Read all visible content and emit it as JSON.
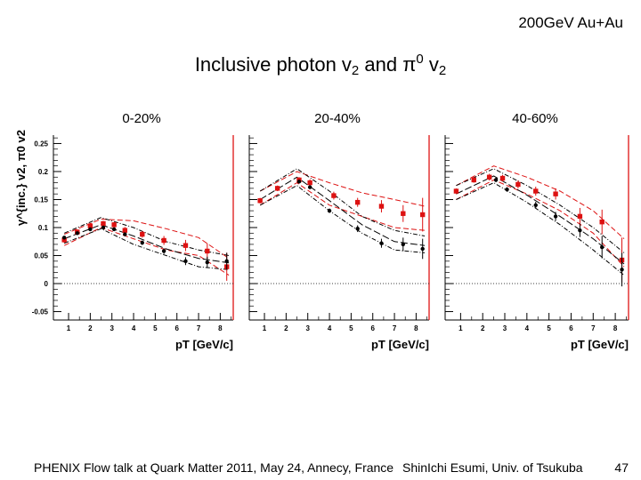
{
  "slide": {
    "header_tag": "200GeV Au+Au",
    "title_main": "Inclusive photon v",
    "title_sub": "2",
    "title_and": " and π",
    "title_sup": "0",
    "title_v": " v",
    "title_sub2": "2",
    "footer_left": "PHENIX Flow talk at Quark Matter 2011, May 24, Annecy, France",
    "footer_right": "ShinIchi Esumi, Univ. of Tsukuba",
    "page_number": "47"
  },
  "colors": {
    "photon": "#dd1111",
    "pi0": "#000000",
    "frame_red": "#dd0000"
  },
  "chart_data": {
    "type": "scatter",
    "ylabel": "γ^{inc.} v2, π0 v2",
    "xlabel": "pT [GeV/c]",
    "xlim": [
      0.3,
      8.6
    ],
    "ylim": [
      -0.065,
      0.265
    ],
    "yticks": [
      -0.05,
      0,
      0.05,
      0.1,
      0.15,
      0.2,
      0.25
    ],
    "ytick_labels": [
      "-0.05",
      "0",
      "0.05",
      "0.1",
      "0.15",
      "0.2",
      "0.25"
    ],
    "xticks": [
      1,
      2,
      3,
      4,
      5,
      6,
      7,
      8
    ],
    "xtick_labels": [
      "1",
      "2",
      "3",
      "4",
      "5",
      "6",
      "7",
      "8"
    ],
    "panels": [
      {
        "label": "0-20%",
        "series": [
          {
            "name": "inclusive photon v2",
            "marker": "square",
            "color": "#dd1111",
            "x": [
              0.8,
              1.4,
              2.0,
              2.6,
              3.1,
              3.6,
              4.4,
              5.4,
              6.4,
              7.4,
              8.3
            ],
            "y": [
              0.078,
              0.092,
              0.103,
              0.107,
              0.105,
              0.095,
              0.088,
              0.077,
              0.068,
              0.058,
              0.03
            ],
            "err": [
              0.005,
              0.005,
              0.005,
              0.005,
              0.005,
              0.006,
              0.006,
              0.008,
              0.01,
              0.014,
              0.025
            ]
          },
          {
            "name": "pi0 v2",
            "marker": "dot",
            "color": "#000000",
            "x": [
              0.8,
              1.4,
              2.0,
              2.6,
              3.1,
              3.6,
              4.4,
              5.4,
              6.4,
              7.4,
              8.3
            ],
            "y": [
              0.082,
              0.09,
              0.097,
              0.1,
              0.097,
              0.088,
              0.073,
              0.058,
              0.04,
              0.038,
              0.04
            ],
            "err": [
              0.002,
              0.002,
              0.002,
              0.002,
              0.002,
              0.003,
              0.004,
              0.005,
              0.007,
              0.01,
              0.015
            ]
          }
        ],
        "bands": [
          {
            "name": "photon upper",
            "color": "#dd1111",
            "dash": "6,3",
            "x": [
              0.8,
              2.5,
              4.0,
              5.5,
              7.0,
              8.4
            ],
            "y": [
              0.088,
              0.115,
              0.112,
              0.098,
              0.082,
              0.045
            ]
          },
          {
            "name": "photon lower",
            "color": "#dd1111",
            "dash": "6,3",
            "x": [
              0.8,
              2.5,
              4.0,
              5.5,
              7.0,
              8.4
            ],
            "y": [
              0.068,
              0.1,
              0.08,
              0.06,
              0.05,
              0.015
            ]
          },
          {
            "name": "decay upper",
            "color": "#000000",
            "dash": "5,2,1,2",
            "x": [
              0.8,
              2.5,
              4.0,
              5.5,
              7.0,
              8.4
            ],
            "y": [
              0.09,
              0.118,
              0.1,
              0.075,
              0.06,
              0.05
            ]
          },
          {
            "name": "decay lower",
            "color": "#000000",
            "dash": "5,2,1,2",
            "x": [
              0.8,
              2.5,
              4.0,
              5.5,
              7.0,
              8.4
            ],
            "y": [
              0.072,
              0.098,
              0.07,
              0.05,
              0.03,
              0.025
            ]
          },
          {
            "name": "decay central",
            "color": "#000000",
            "dash": "8,3",
            "x": [
              0.8,
              2.5,
              4.0,
              5.5,
              7.0,
              8.4
            ],
            "y": [
              0.08,
              0.105,
              0.085,
              0.062,
              0.045,
              0.037
            ]
          }
        ]
      },
      {
        "label": "20-40%",
        "series": [
          {
            "name": "inclusive photon v2",
            "marker": "square",
            "color": "#dd1111",
            "x": [
              0.8,
              1.6,
              2.6,
              3.1,
              4.2,
              5.3,
              6.4,
              7.4,
              8.3
            ],
            "y": [
              0.148,
              0.17,
              0.185,
              0.18,
              0.157,
              0.145,
              0.138,
              0.125,
              0.123
            ],
            "err": [
              0.005,
              0.005,
              0.005,
              0.006,
              0.007,
              0.008,
              0.011,
              0.015,
              0.03
            ]
          },
          {
            "name": "pi0 v2",
            "marker": "dot",
            "color": "#000000",
            "x": [
              2.6,
              3.1,
              4.0,
              5.3,
              6.4,
              7.4,
              8.3
            ],
            "y": [
              0.182,
              0.172,
              0.13,
              0.098,
              0.072,
              0.07,
              0.062
            ],
            "err": [
              0.003,
              0.003,
              0.004,
              0.006,
              0.008,
              0.012,
              0.018
            ]
          }
        ],
        "bands": [
          {
            "name": "photon upper",
            "color": "#dd1111",
            "dash": "6,3",
            "x": [
              0.8,
              2.5,
              4.0,
              5.5,
              7.0,
              8.4
            ],
            "y": [
              0.165,
              0.2,
              0.18,
              0.162,
              0.15,
              0.138
            ]
          },
          {
            "name": "photon lower",
            "color": "#dd1111",
            "dash": "6,3",
            "x": [
              0.8,
              2.5,
              4.0,
              5.5,
              7.0,
              8.4
            ],
            "y": [
              0.14,
              0.18,
              0.14,
              0.12,
              0.1,
              0.095
            ]
          },
          {
            "name": "decay upper",
            "color": "#000000",
            "dash": "5,2,1,2",
            "x": [
              0.8,
              2.5,
              4.0,
              5.5,
              7.0,
              8.4
            ],
            "y": [
              0.165,
              0.205,
              0.165,
              0.12,
              0.095,
              0.085
            ]
          },
          {
            "name": "decay lower",
            "color": "#000000",
            "dash": "5,2,1,2",
            "x": [
              0.8,
              2.5,
              4.0,
              5.5,
              7.0,
              8.4
            ],
            "y": [
              0.14,
              0.175,
              0.13,
              0.09,
              0.06,
              0.055
            ]
          },
          {
            "name": "decay central",
            "color": "#000000",
            "dash": "8,3",
            "x": [
              0.8,
              2.5,
              4.0,
              5.5,
              7.0,
              8.4
            ],
            "y": [
              0.15,
              0.19,
              0.148,
              0.105,
              0.075,
              0.068
            ]
          }
        ]
      },
      {
        "label": "40-60%",
        "series": [
          {
            "name": "inclusive photon v2",
            "marker": "square",
            "color": "#dd1111",
            "x": [
              0.8,
              1.6,
              2.3,
              2.9,
              3.6,
              4.4,
              5.3,
              6.4,
              7.4,
              8.3
            ],
            "y": [
              0.165,
              0.185,
              0.19,
              0.188,
              0.177,
              0.165,
              0.16,
              0.12,
              0.11,
              0.042
            ],
            "err": [
              0.005,
              0.005,
              0.006,
              0.006,
              0.007,
              0.008,
              0.01,
              0.015,
              0.022,
              0.04
            ]
          },
          {
            "name": "pi0 v2",
            "marker": "dot",
            "color": "#000000",
            "x": [
              2.6,
              3.1,
              4.4,
              5.3,
              6.4,
              7.4,
              8.3
            ],
            "y": [
              0.185,
              0.168,
              0.14,
              0.12,
              0.095,
              0.065,
              0.025
            ],
            "err": [
              0.004,
              0.004,
              0.006,
              0.008,
              0.012,
              0.02,
              0.03
            ]
          }
        ],
        "bands": [
          {
            "name": "photon upper",
            "color": "#dd1111",
            "dash": "6,3",
            "x": [
              0.8,
              2.5,
              4.0,
              5.5,
              7.0,
              8.4
            ],
            "y": [
              0.175,
              0.21,
              0.19,
              0.165,
              0.13,
              0.08
            ]
          },
          {
            "name": "photon lower",
            "color": "#dd1111",
            "dash": "6,3",
            "x": [
              0.8,
              2.5,
              4.0,
              5.5,
              7.0,
              8.4
            ],
            "y": [
              0.15,
              0.185,
              0.16,
              0.13,
              0.09,
              0.03
            ]
          },
          {
            "name": "decay upper",
            "color": "#000000",
            "dash": "5,2,1,2",
            "x": [
              0.8,
              2.5,
              4.0,
              5.5,
              7.0,
              8.4
            ],
            "y": [
              0.175,
              0.205,
              0.175,
              0.14,
              0.1,
              0.055
            ]
          },
          {
            "name": "decay lower",
            "color": "#000000",
            "dash": "5,2,1,2",
            "x": [
              0.8,
              2.5,
              4.0,
              5.5,
              7.0,
              8.4
            ],
            "y": [
              0.15,
              0.18,
              0.145,
              0.105,
              0.06,
              0.015
            ]
          },
          {
            "name": "decay central",
            "color": "#000000",
            "dash": "8,3",
            "x": [
              0.8,
              2.5,
              4.0,
              5.5,
              7.0,
              8.4
            ],
            "y": [
              0.16,
              0.192,
              0.158,
              0.12,
              0.08,
              0.035
            ]
          }
        ]
      }
    ]
  }
}
